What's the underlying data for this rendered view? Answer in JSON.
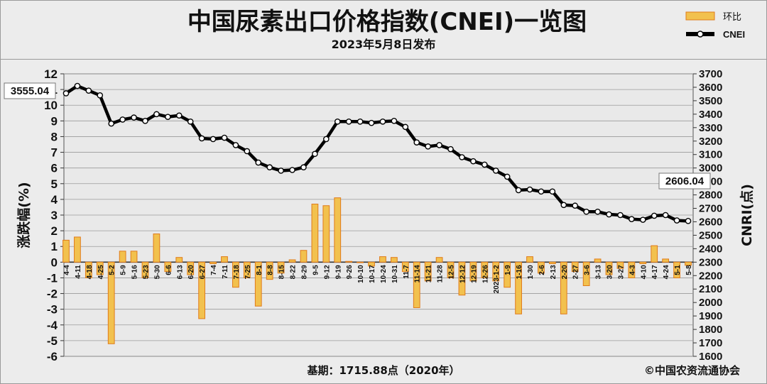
{
  "header": {
    "title": "中国尿素出口价格指数(CNEI)一览图",
    "subtitle": "2023年5月8日发布"
  },
  "legend": {
    "bar_label": "环比",
    "line_label": "CNEI"
  },
  "footer": {
    "base_note": "基期：1715.88点（2020年）",
    "copyright": "©中国农资流通协会"
  },
  "colors": {
    "background": "#ececec",
    "bar_fill": "#f2c14e",
    "bar_stroke": "#e07b1a",
    "line": "#000000",
    "grid": "#9a9a9a"
  },
  "chart_data": {
    "type": "bar+line",
    "ylabel_left": "涨跌幅(%)",
    "ylabel_right": "CNRI(点)",
    "left_ylim": [
      -6,
      12
    ],
    "right_ylim": [
      1600,
      3700
    ],
    "left_ticks": [
      -6,
      -5,
      -4,
      -3,
      -2,
      -1,
      0,
      1,
      2,
      3,
      4,
      5,
      6,
      7,
      8,
      9,
      10,
      11,
      12
    ],
    "right_ticks": [
      1600,
      1700,
      1800,
      1900,
      2000,
      2100,
      2200,
      2300,
      2400,
      2500,
      2600,
      2700,
      2800,
      2900,
      3000,
      3100,
      3200,
      3300,
      3400,
      3500,
      3600,
      3700
    ],
    "categories": [
      "4-4",
      "4-11",
      "4-18",
      "4-25",
      "5-2",
      "5-9",
      "5-16",
      "5-23",
      "5-30",
      "6-6",
      "6-13",
      "6-20",
      "6-27",
      "7-4",
      "7-11",
      "7-18",
      "7-25",
      "8-1",
      "8-8",
      "8-15",
      "8-22",
      "8-29",
      "9-5",
      "9-12",
      "9-19",
      "9-26",
      "10-10",
      "10-17",
      "10-24",
      "10-31",
      "11-7",
      "11-14",
      "11-21",
      "11-28",
      "12-5",
      "12-12",
      "12-19",
      "12-26",
      "2023-1-2",
      "1-9",
      "1-16",
      "1-30",
      "2-6",
      "2-13",
      "2-20",
      "2-27",
      "3-6",
      "3-13",
      "3-20",
      "3-27",
      "4-3",
      "4-10",
      "4-17",
      "4-24",
      "5-1",
      "5-8"
    ],
    "series": [
      {
        "name": "环比",
        "type": "bar",
        "values": [
          1.4,
          1.6,
          -1.0,
          -0.8,
          -5.2,
          0.7,
          0.7,
          -1.0,
          1.8,
          -0.6,
          0.3,
          -0.8,
          -3.6,
          -0.1,
          0.35,
          -1.6,
          -1.0,
          -2.8,
          -1.1,
          -0.7,
          0.15,
          0.75,
          3.7,
          3.6,
          4.1,
          0.05,
          -0.02,
          -0.25,
          0.35,
          0.3,
          -0.6,
          -2.9,
          -1.2,
          0.3,
          -1.0,
          -2.1,
          -1.2,
          -1.0,
          -1.2,
          -1.6,
          -3.3,
          0.35,
          -0.7,
          -0.1,
          -3.3,
          -0.6,
          -1.5,
          0.2,
          -0.8,
          -0.4,
          -1.0,
          -0.1,
          1.05,
          0.2,
          -1.0,
          -0.2
        ]
      },
      {
        "name": "CNEI",
        "type": "line",
        "values": [
          3555.04,
          3610,
          3575,
          3540,
          3330,
          3360,
          3375,
          3350,
          3400,
          3380,
          3390,
          3345,
          3220,
          3215,
          3225,
          3170,
          3125,
          3040,
          3005,
          2980,
          2985,
          3005,
          3105,
          3215,
          3345,
          3345,
          3345,
          3335,
          3345,
          3350,
          3305,
          3190,
          3160,
          3170,
          3140,
          3080,
          3050,
          3025,
          2980,
          2935,
          2835,
          2840,
          2825,
          2825,
          2725,
          2720,
          2675,
          2675,
          2655,
          2650,
          2620,
          2615,
          2645,
          2650,
          2610,
          2606.04
        ]
      }
    ],
    "start_callout": "3555.04",
    "end_callout": "2606.04"
  }
}
